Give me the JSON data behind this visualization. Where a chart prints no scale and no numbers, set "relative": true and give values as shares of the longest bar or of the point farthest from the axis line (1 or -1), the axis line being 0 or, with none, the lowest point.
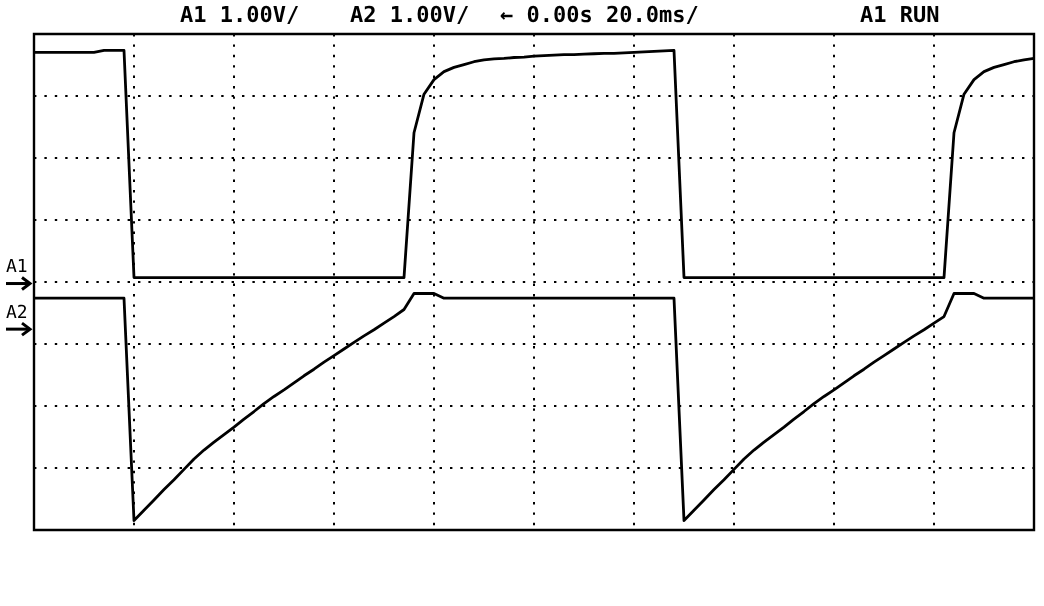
{
  "chart_data": {
    "type": "line",
    "relative": true,
    "annotations": [
      "A1 1.00V/",
      "A2 1.00V/",
      "← 0.00s 20.0ms/",
      "A1 RUN"
    ],
    "categories": [
      null,
      null,
      null,
      null,
      null,
      null,
      null,
      null,
      null,
      null,
      null,
      null,
      null,
      null,
      null,
      null,
      null,
      null,
      null,
      null,
      null,
      null,
      null,
      null,
      null,
      null,
      null,
      null,
      null,
      null,
      null,
      null,
      null,
      null,
      null,
      null,
      null,
      null,
      null,
      null,
      null,
      null,
      null,
      null,
      null,
      null,
      null,
      null,
      null,
      null,
      null,
      null,
      null,
      null,
      null,
      null,
      null,
      null,
      null,
      null,
      null,
      null,
      null,
      null,
      null,
      null,
      null,
      null,
      null,
      null,
      null,
      null,
      null,
      null,
      null,
      null,
      null,
      null,
      null,
      null,
      null,
      null,
      null,
      null,
      null,
      null,
      null,
      null,
      null,
      null,
      null,
      null,
      null,
      null,
      null,
      null,
      null,
      null,
      null,
      null,
      null
    ],
    "grid": true,
    "legend": "left",
    "marker": "none",
    "line_style": "solid",
    "series": [
      {
        "name": "A1",
        "color": "#000000",
        "values": [
          0.996,
          0.996,
          0.996,
          0.996,
          0.996,
          0.996,
          0.996,
          1.0,
          1.0,
          1.0,
          0.517,
          0.517,
          0.517,
          0.517,
          0.517,
          0.517,
          0.517,
          0.517,
          0.517,
          0.517,
          0.517,
          0.517,
          0.517,
          0.517,
          0.517,
          0.517,
          0.517,
          0.517,
          0.517,
          0.517,
          0.517,
          0.517,
          0.517,
          0.517,
          0.517,
          0.517,
          0.517,
          0.517,
          0.825,
          0.907,
          0.938,
          0.955,
          0.964,
          0.97,
          0.976,
          0.98,
          0.982,
          0.983,
          0.985,
          0.986,
          0.988,
          0.989,
          0.99,
          0.991,
          0.991,
          0.992,
          0.993,
          0.994,
          0.994,
          0.995,
          0.996,
          0.997,
          0.998,
          0.999,
          1.0,
          0.517,
          0.517,
          0.517,
          0.517,
          0.517,
          0.517,
          0.517,
          0.517,
          0.517,
          0.517,
          0.517,
          0.517,
          0.517,
          0.517,
          0.517,
          0.517,
          0.517,
          0.517,
          0.517,
          0.517,
          0.517,
          0.517,
          0.517,
          0.517,
          0.517,
          0.517,
          0.517,
          0.825,
          0.907,
          0.938,
          0.955,
          0.964,
          0.97,
          0.976,
          0.98,
          0.983
        ]
      },
      {
        "name": "A2",
        "color": "#000000",
        "values": [
          0.473,
          0.473,
          0.473,
          0.473,
          0.473,
          0.473,
          0.473,
          0.473,
          0.473,
          0.473,
          0,
          0.022,
          0.044,
          0.066,
          0.087,
          0.109,
          0.131,
          0.15,
          0.167,
          0.183,
          0.199,
          0.216,
          0.232,
          0.249,
          0.264,
          0.278,
          0.293,
          0.308,
          0.322,
          0.337,
          0.351,
          0.365,
          0.379,
          0.393,
          0.406,
          0.42,
          0.434,
          0.449,
          0.483,
          0.483,
          0.483,
          0.473,
          0.473,
          0.473,
          0.473,
          0.473,
          0.473,
          0.473,
          0.473,
          0.473,
          0.473,
          0.473,
          0.473,
          0.473,
          0.473,
          0.473,
          0.473,
          0.473,
          0.473,
          0.473,
          0.473,
          0.473,
          0.473,
          0.473,
          0.473,
          0,
          0.022,
          0.044,
          0.066,
          0.087,
          0.109,
          0.131,
          0.15,
          0.167,
          0.183,
          0.199,
          0.216,
          0.232,
          0.249,
          0.264,
          0.278,
          0.293,
          0.308,
          0.322,
          0.337,
          0.351,
          0.365,
          0.379,
          0.393,
          0.406,
          0.42,
          0.434,
          0.483,
          0.483,
          0.483,
          0.473,
          0.473,
          0.473,
          0.473,
          0.473,
          0.473
        ]
      }
    ]
  }
}
